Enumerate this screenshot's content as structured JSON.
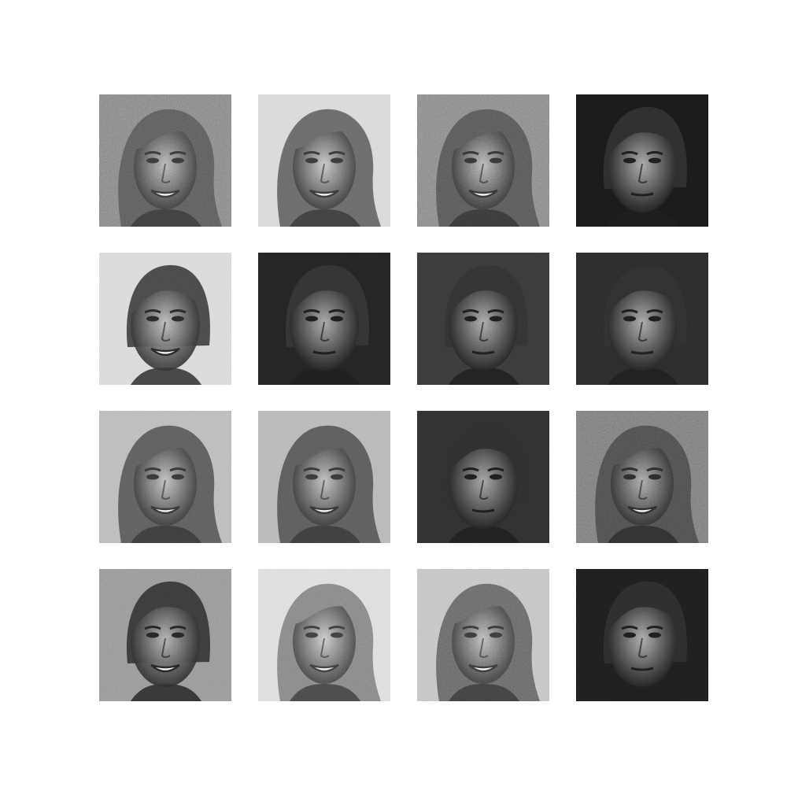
{
  "figure": {
    "rows": 4,
    "cols": 4,
    "colormap": "grayscale",
    "background": "#ffffff",
    "tiles": [
      {
        "row": 0,
        "col": 0,
        "variant": "woman-noisy-bg",
        "bg": "#8a8a8a",
        "hair": "#5e5e5e",
        "skin": "#b8b8b8",
        "tone": "#3a3a3a"
      },
      {
        "row": 0,
        "col": 1,
        "variant": "woman-light-bg",
        "bg": "#d9d9d9",
        "hair": "#6a6a6a",
        "skin": "#c8c8c8",
        "tone": "#3a3a3a"
      },
      {
        "row": 0,
        "col": 2,
        "variant": "woman-noisy-bg",
        "bg": "#8c8c8c",
        "hair": "#5a5a5a",
        "skin": "#b9b9b9",
        "tone": "#353535"
      },
      {
        "row": 0,
        "col": 3,
        "variant": "man-dark-bg",
        "bg": "#1a1a1a",
        "hair": "#2e2e2e",
        "skin": "#a8a8a8",
        "tone": "#1e1e1e"
      },
      {
        "row": 1,
        "col": 0,
        "variant": "man-light-bg",
        "bg": "#dadada",
        "hair": "#4a4a4a",
        "skin": "#bdbdbd",
        "tone": "#2a2a2a"
      },
      {
        "row": 1,
        "col": 1,
        "variant": "man-dark-bg",
        "bg": "#242424",
        "hair": "#333333",
        "skin": "#a6a6a6",
        "tone": "#1e1e1e"
      },
      {
        "row": 1,
        "col": 2,
        "variant": "man-dark-bg",
        "bg": "#3a3a3a",
        "hair": "#333333",
        "skin": "#ababab",
        "tone": "#1e1e1e"
      },
      {
        "row": 1,
        "col": 3,
        "variant": "man-dark-bg",
        "bg": "#2c2c2c",
        "hair": "#303030",
        "skin": "#a9a9a9",
        "tone": "#1e1e1e"
      },
      {
        "row": 2,
        "col": 0,
        "variant": "woman-light-bg",
        "bg": "#bcbcbc",
        "hair": "#5f5f5f",
        "skin": "#c2c2c2",
        "tone": "#383838"
      },
      {
        "row": 2,
        "col": 1,
        "variant": "woman-light-bg",
        "bg": "#b8b8b8",
        "hair": "#5d5d5d",
        "skin": "#c0c0c0",
        "tone": "#383838"
      },
      {
        "row": 2,
        "col": 2,
        "variant": "man-dark-bg",
        "bg": "#303030",
        "hair": "#2f2f2f",
        "skin": "#a4a4a4",
        "tone": "#1e1e1e"
      },
      {
        "row": 2,
        "col": 3,
        "variant": "woman-noisy-bg",
        "bg": "#7e7e7e",
        "hair": "#505050",
        "skin": "#a9a9a9",
        "tone": "#2c2c2c"
      },
      {
        "row": 3,
        "col": 0,
        "variant": "man-light-bg",
        "bg": "#9a9a9a",
        "hair": "#3c3c3c",
        "skin": "#b2b2b2",
        "tone": "#262626"
      },
      {
        "row": 3,
        "col": 1,
        "variant": "woman-light-bg",
        "bg": "#dedede",
        "hair": "#8a8a8a",
        "skin": "#cdcdcd",
        "tone": "#404040"
      },
      {
        "row": 3,
        "col": 2,
        "variant": "woman-noisy-bg",
        "bg": "#c4c4c4",
        "hair": "#6a6a6a",
        "skin": "#bdbdbd",
        "tone": "#3a3a3a"
      },
      {
        "row": 3,
        "col": 3,
        "variant": "man-dark-bg",
        "bg": "#1f1f1f",
        "hair": "#2d2d2d",
        "skin": "#aaaaaa",
        "tone": "#1e1e1e"
      }
    ]
  }
}
